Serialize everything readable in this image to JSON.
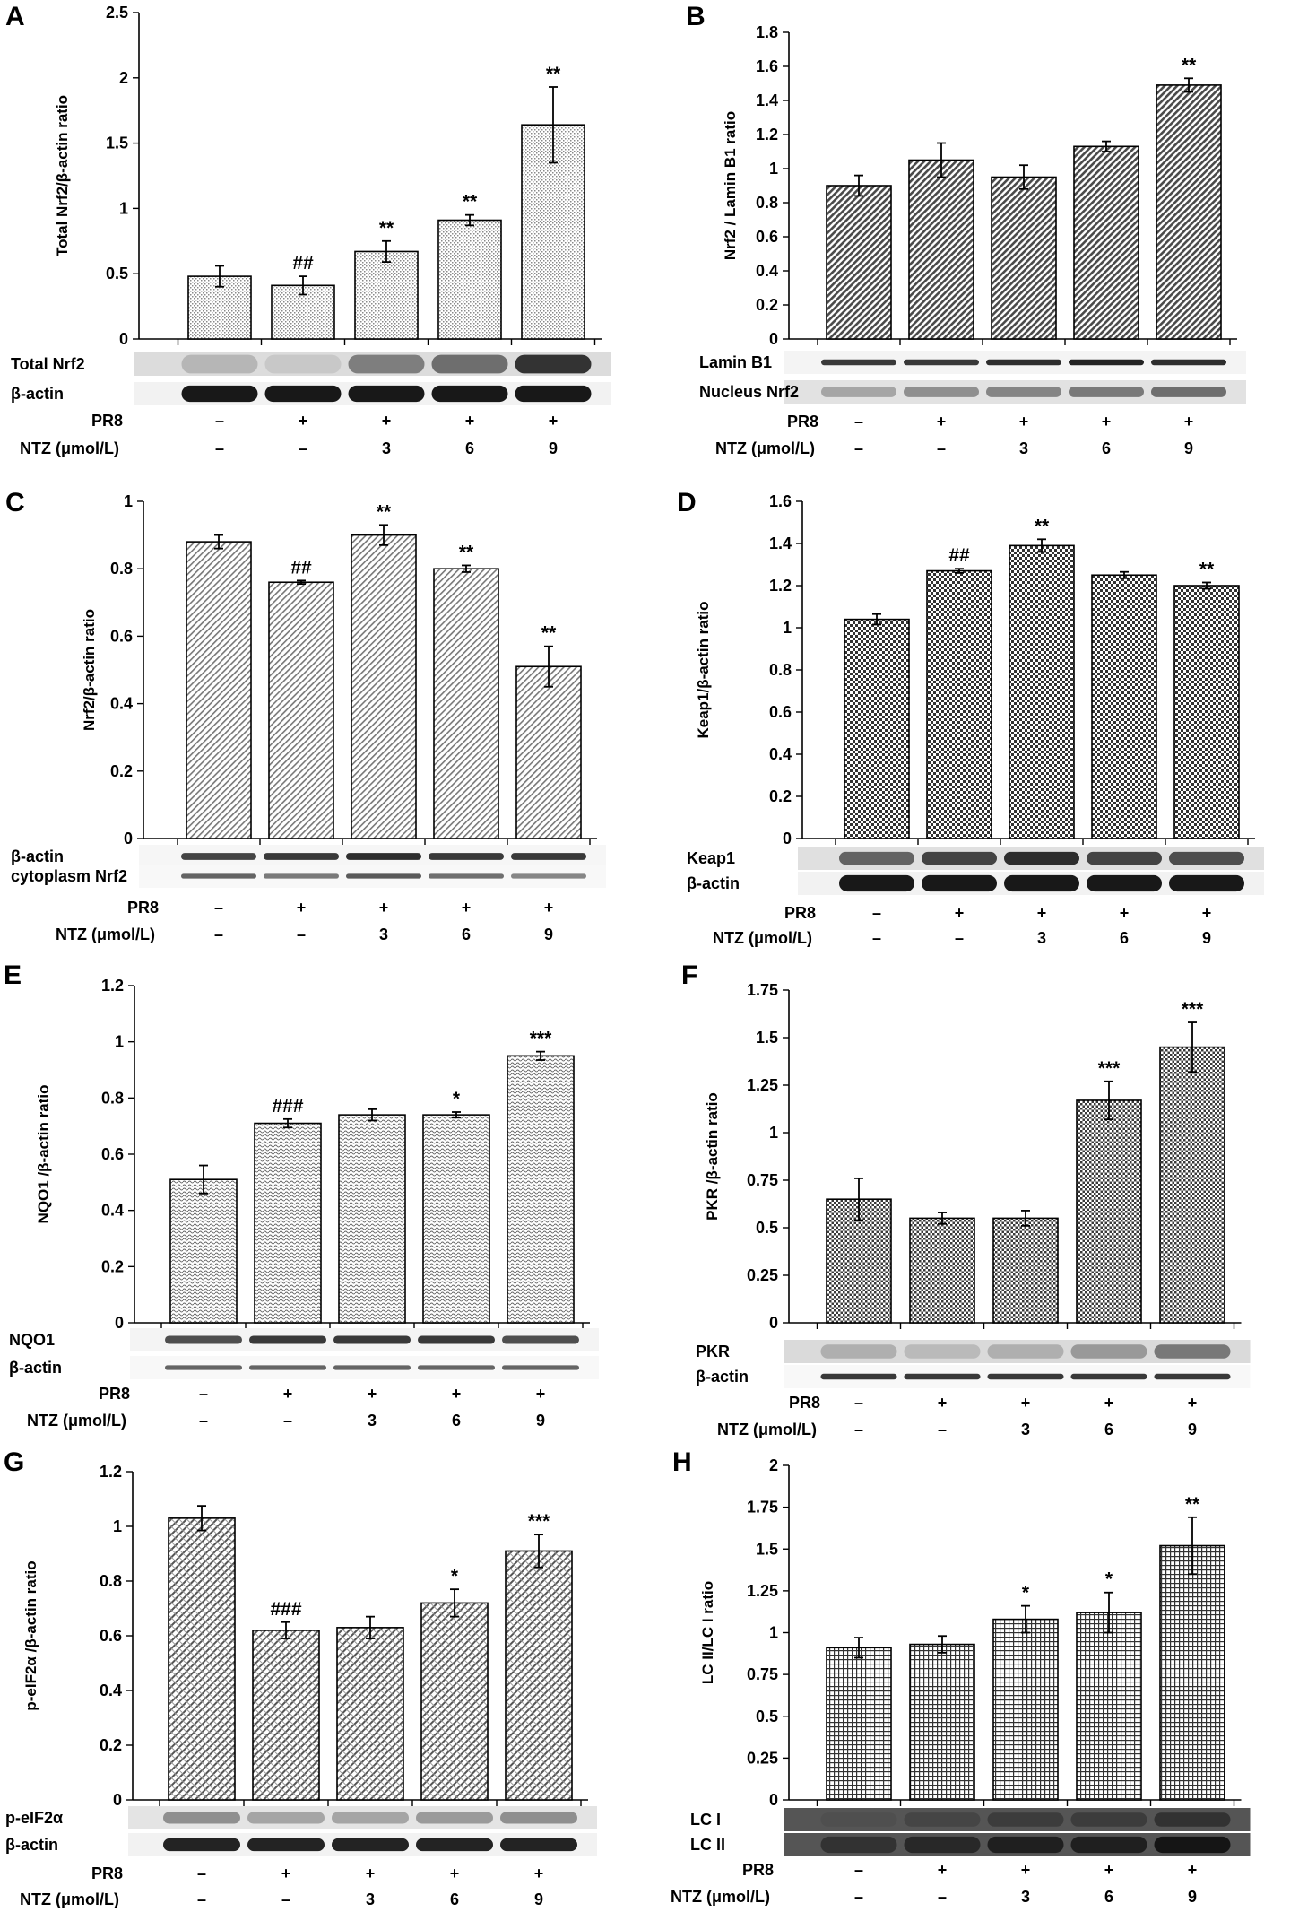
{
  "conditions": {
    "pr8_label": "PR8",
    "ntz_label": "NTZ (μmol/L)",
    "pr8": [
      "–",
      "+",
      "+",
      "+",
      "+"
    ],
    "ntz": [
      "–",
      "–",
      "3",
      "6",
      "9"
    ]
  },
  "chart_data": [
    {
      "panel": "A",
      "type": "bar",
      "ylabel": "Total Nrf2/β-actin ratio",
      "ylim": [
        0,
        2.5
      ],
      "yticks": [
        "0",
        "0.5",
        "1",
        "1.5",
        "2",
        "2.5"
      ],
      "values": [
        0.48,
        0.41,
        0.67,
        0.91,
        1.64
      ],
      "errors": [
        0.08,
        0.07,
        0.08,
        0.04,
        0.29
      ],
      "significance": [
        "",
        "##",
        "**",
        "**",
        "**"
      ],
      "pattern": "dots",
      "blot_labels": [
        "Total Nrf2",
        "β-actin"
      ],
      "blots": [
        {
          "intensity": [
            0.22,
            0.14,
            0.48,
            0.55,
            0.82
          ],
          "thickness": 0.8,
          "bg": "#dcdcdc"
        },
        {
          "intensity": [
            0.95,
            0.95,
            0.95,
            0.95,
            0.95
          ],
          "thickness": 0.7,
          "bg": "#f2f2f2"
        }
      ]
    },
    {
      "panel": "B",
      "type": "bar",
      "ylabel": "Nrf2 / Lamin B1 ratio",
      "ylim": [
        0,
        1.8
      ],
      "yticks": [
        "0",
        "0.2",
        "0.4",
        "0.6",
        "0.8",
        "1",
        "1.2",
        "1.4",
        "1.6",
        "1.8"
      ],
      "values": [
        0.9,
        1.05,
        0.95,
        1.13,
        1.49
      ],
      "errors": [
        0.06,
        0.1,
        0.07,
        0.03,
        0.04
      ],
      "significance": [
        "",
        "",
        "",
        "",
        "**"
      ],
      "pattern": "diag-dense",
      "blot_labels": [
        "Lamin B1",
        "Nucleus Nrf2"
      ],
      "blots": [
        {
          "intensity": [
            0.8,
            0.8,
            0.85,
            0.9,
            0.85
          ],
          "thickness": 0.25,
          "bg": "#f4f4f4"
        },
        {
          "intensity": [
            0.3,
            0.4,
            0.45,
            0.5,
            0.55
          ],
          "thickness": 0.45,
          "bg": "#e2e2e2"
        }
      ]
    },
    {
      "panel": "C",
      "type": "bar",
      "ylabel": "Nrf2/β-actin ratio",
      "ylim": [
        0,
        1
      ],
      "yticks": [
        "0",
        "0.2",
        "0.4",
        "0.6",
        "0.8",
        "1"
      ],
      "values": [
        0.88,
        0.76,
        0.9,
        0.8,
        0.51
      ],
      "errors": [
        0.02,
        0.005,
        0.03,
        0.01,
        0.06
      ],
      "significance": [
        "",
        "##",
        "**",
        "**",
        "**"
      ],
      "pattern": "diag-light",
      "blot_labels": [
        "β-actin",
        "cytoplasm Nrf2"
      ],
      "blots": [
        {
          "intensity": [
            0.75,
            0.8,
            0.85,
            0.8,
            0.8
          ],
          "thickness": 0.3,
          "bg": "#f6f6f6"
        },
        {
          "intensity": [
            0.6,
            0.5,
            0.65,
            0.55,
            0.45
          ],
          "thickness": 0.2,
          "bg": "#f8f8f8"
        }
      ]
    },
    {
      "panel": "D",
      "type": "bar",
      "ylabel": "Keap1/β-actin ratio",
      "ylim": [
        0,
        1.6
      ],
      "yticks": [
        "0",
        "0.2",
        "0.4",
        "0.6",
        "0.8",
        "1",
        "1.2",
        "1.4",
        "1.6"
      ],
      "values": [
        1.04,
        1.27,
        1.39,
        1.25,
        1.2
      ],
      "errors": [
        0.025,
        0.01,
        0.03,
        0.015,
        0.015
      ],
      "significance": [
        "",
        "##",
        "**",
        "",
        "**"
      ],
      "pattern": "checker",
      "blot_labels": [
        "Keap1",
        "β-actin"
      ],
      "blots": [
        {
          "intensity": [
            0.6,
            0.75,
            0.85,
            0.75,
            0.7
          ],
          "thickness": 0.55,
          "bg": "#e0e0e0"
        },
        {
          "intensity": [
            0.95,
            0.95,
            0.95,
            0.95,
            0.95
          ],
          "thickness": 0.7,
          "bg": "#f2f2f2"
        }
      ]
    },
    {
      "panel": "E",
      "type": "bar",
      "ylabel": "NQO1 /β-actin ratio",
      "ylim": [
        0,
        1.2
      ],
      "yticks": [
        "0",
        "0.2",
        "0.4",
        "0.6",
        "0.8",
        "1",
        "1.2"
      ],
      "values": [
        0.51,
        0.71,
        0.74,
        0.74,
        0.95
      ],
      "errors": [
        0.05,
        0.015,
        0.02,
        0.01,
        0.015
      ],
      "significance": [
        "",
        "###",
        "",
        "*",
        "***"
      ],
      "pattern": "wave",
      "blot_labels": [
        "NQO1",
        "β-actin"
      ],
      "blots": [
        {
          "intensity": [
            0.7,
            0.8,
            0.8,
            0.8,
            0.7
          ],
          "thickness": 0.35,
          "bg": "#f4f4f4"
        },
        {
          "intensity": [
            0.6,
            0.6,
            0.6,
            0.6,
            0.6
          ],
          "thickness": 0.2,
          "bg": "#f8f8f8"
        }
      ]
    },
    {
      "panel": "F",
      "type": "bar",
      "ylabel": "PKR /β-actin ratio",
      "ylim": [
        0,
        1.75
      ],
      "yticks": [
        "0",
        "0.25",
        "0.5",
        "0.75",
        "1",
        "1.25",
        "1.5",
        "1.75"
      ],
      "values": [
        0.65,
        0.55,
        0.55,
        1.17,
        1.45
      ],
      "errors": [
        0.11,
        0.03,
        0.04,
        0.1,
        0.13
      ],
      "significance": [
        "",
        "",
        "",
        "***",
        "***"
      ],
      "pattern": "checker-fine",
      "blot_labels": [
        "PKR",
        "β-actin"
      ],
      "blots": [
        {
          "intensity": [
            0.25,
            0.2,
            0.25,
            0.35,
            0.5
          ],
          "thickness": 0.6,
          "bg": "#dadada"
        },
        {
          "intensity": [
            0.8,
            0.8,
            0.8,
            0.8,
            0.8
          ],
          "thickness": 0.25,
          "bg": "#f8f8f8"
        }
      ]
    },
    {
      "panel": "G",
      "type": "bar",
      "ylabel": "p-eIF2α /β-actin ratio",
      "ylim": [
        0,
        1.2
      ],
      "yticks": [
        "0",
        "0.2",
        "0.4",
        "0.6",
        "0.8",
        "1",
        "1.2"
      ],
      "values": [
        1.03,
        0.62,
        0.63,
        0.72,
        0.91
      ],
      "errors": [
        0.045,
        0.03,
        0.04,
        0.05,
        0.06
      ],
      "significance": [
        "",
        "###",
        "",
        "*",
        "***"
      ],
      "pattern": "diag-mixed",
      "blot_labels": [
        "p-eIF2α",
        "β-actin"
      ],
      "blots": [
        {
          "intensity": [
            0.4,
            0.3,
            0.3,
            0.35,
            0.4
          ],
          "thickness": 0.5,
          "bg": "#e4e4e4"
        },
        {
          "intensity": [
            0.9,
            0.9,
            0.9,
            0.9,
            0.9
          ],
          "thickness": 0.55,
          "bg": "#f2f2f2"
        }
      ]
    },
    {
      "panel": "H",
      "type": "bar",
      "ylabel": "LC II/LC I ratio",
      "ylim": [
        0,
        2
      ],
      "yticks": [
        "0",
        "0.25",
        "0.5",
        "0.75",
        "1",
        "1.25",
        "1.5",
        "1.75",
        "2"
      ],
      "values": [
        0.91,
        0.93,
        1.08,
        1.12,
        1.52
      ],
      "errors": [
        0.06,
        0.05,
        0.08,
        0.12,
        0.17
      ],
      "significance": [
        "",
        "",
        "*",
        "*",
        "**"
      ],
      "pattern": "grid",
      "blot_labels": [
        "LC I",
        "LC II"
      ],
      "blots": [
        {
          "intensity": [
            0.55,
            0.6,
            0.65,
            0.65,
            0.7
          ],
          "thickness": 0.6,
          "bg": "#555555"
        },
        {
          "intensity": [
            0.7,
            0.75,
            0.8,
            0.8,
            0.85
          ],
          "thickness": 0.7,
          "bg": "#555555"
        }
      ]
    }
  ]
}
